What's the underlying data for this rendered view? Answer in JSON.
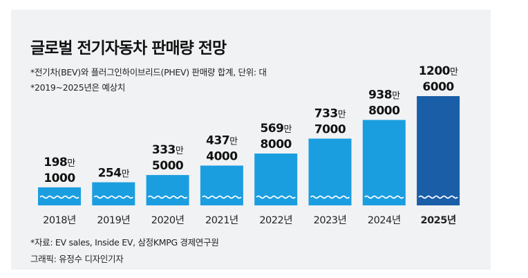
{
  "chart_data": {
    "type": "bar",
    "title": "글로벌 전기자동차 판매량 전망",
    "notes": [
      "*전기차(BEV)와 플러그인하이브리드(PHEV) 판매량 합계, 단위: 대",
      "*2019~2025년은 예상치"
    ],
    "categories": [
      "2018년",
      "2019년",
      "2020년",
      "2021년",
      "2022년",
      "2023년",
      "2024년",
      "2025년"
    ],
    "value_labels": [
      {
        "main": "198",
        "unit": "만",
        "sub": "1000"
      },
      {
        "main": "254",
        "unit": "만",
        "sub": ""
      },
      {
        "main": "333",
        "unit": "만",
        "sub": "5000"
      },
      {
        "main": "437",
        "unit": "만",
        "sub": "4000"
      },
      {
        "main": "569",
        "unit": "만",
        "sub": "8000"
      },
      {
        "main": "733",
        "unit": "만",
        "sub": "7000"
      },
      {
        "main": "938",
        "unit": "만",
        "sub": "8000"
      },
      {
        "main": "1200",
        "unit": "만",
        "sub": "6000"
      }
    ],
    "values": [
      1981000,
      2540000,
      3335000,
      4374000,
      5698000,
      7337000,
      9388000,
      12006000
    ],
    "highlight_index": 7,
    "colors": {
      "bar": "#1b9ee0",
      "highlight": "#1a5ea7"
    },
    "source": "*자료: EV sales, Inside EV, 삼정KMPG 경제연구원",
    "credit": "그래픽: 유정수 디자인기자"
  }
}
